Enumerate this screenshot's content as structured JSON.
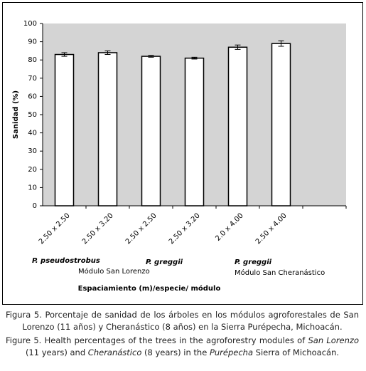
{
  "chart_data": {
    "type": "bar",
    "categories": [
      "2.50 x 2.50",
      "2.50 x 3.20",
      "2.50 x 2.50",
      "2.50 x 3.20",
      "2.0 x 4.00",
      "2.50 x 4.00",
      null
    ],
    "values": [
      83,
      84,
      82,
      81,
      87,
      89,
      null
    ],
    "errors": [
      1,
      1,
      0.5,
      0.5,
      1.2,
      1.5,
      null
    ],
    "color": "#ffffff",
    "ylim": [
      0,
      100
    ],
    "yticks": [
      0,
      10,
      20,
      30,
      40,
      50,
      60,
      70,
      80,
      90,
      100
    ],
    "grid": false,
    "y_label": "Sanidad (%)",
    "x_label": "Espaciamiento (m)/especie/ módulo",
    "annotations": [
      "P. pseudostrobus",
      "Módulo San Lorenzo",
      "P. greggii",
      "P. greggii",
      "Módulo San Cheranástico"
    ]
  },
  "caption": {
    "es": "Figura 5. Porcentaje de sanidad de los árboles en los módulos agroforestales de San Lorenzo (11 años) y Cheranástico (8 años) en la Sierra Purépecha, Michoacán.",
    "en": [
      "Figure 5. Health percentages of the trees in the agroforestry modules of ",
      "San Lorenzo",
      " (11 years) and ",
      "Cheranástico",
      " (8 years) in the ",
      "Purépecha",
      " Sierra of Michoacán."
    ]
  }
}
